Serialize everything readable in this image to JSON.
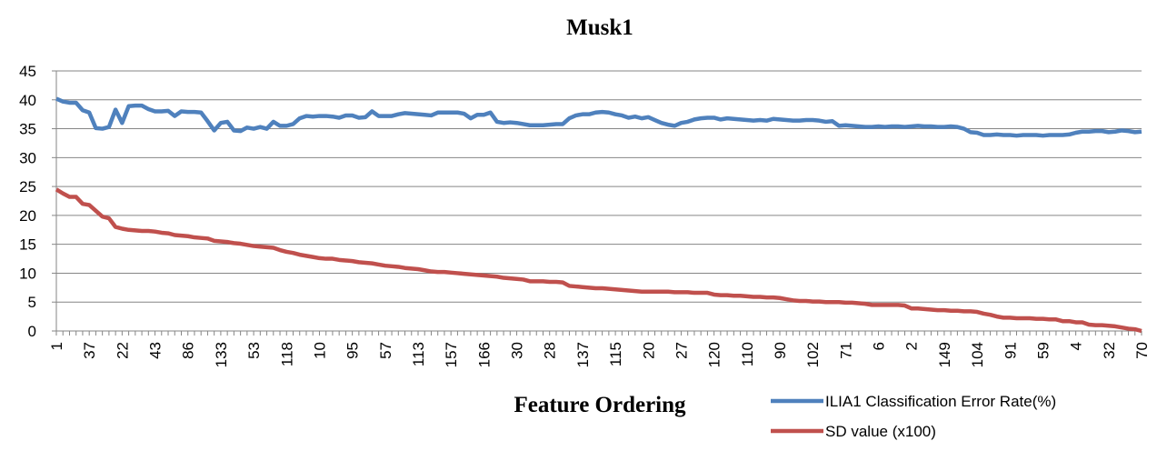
{
  "chart_data": {
    "type": "line",
    "title": "Musk1",
    "x_label": "Feature Ordering",
    "categories": [
      "1",
      null,
      null,
      null,
      null,
      "37",
      null,
      null,
      null,
      null,
      "22",
      null,
      null,
      null,
      null,
      "43",
      null,
      null,
      null,
      null,
      "86",
      null,
      null,
      null,
      null,
      "133",
      null,
      null,
      null,
      null,
      "53",
      null,
      null,
      null,
      null,
      "118",
      null,
      null,
      null,
      null,
      "10",
      null,
      null,
      null,
      null,
      "95",
      null,
      null,
      null,
      null,
      "57",
      null,
      null,
      null,
      null,
      "113",
      null,
      null,
      null,
      null,
      "157",
      null,
      null,
      null,
      null,
      "166",
      null,
      null,
      null,
      null,
      "30",
      null,
      null,
      null,
      null,
      "28",
      null,
      null,
      null,
      null,
      "137",
      null,
      null,
      null,
      null,
      "115",
      null,
      null,
      null,
      null,
      "20",
      null,
      null,
      null,
      null,
      "27",
      null,
      null,
      null,
      null,
      "120",
      null,
      null,
      null,
      null,
      "110",
      null,
      null,
      null,
      null,
      "90",
      null,
      null,
      null,
      null,
      "102",
      null,
      null,
      null,
      null,
      "71",
      null,
      null,
      null,
      null,
      "6",
      null,
      null,
      null,
      null,
      "2",
      null,
      null,
      null,
      null,
      "149",
      null,
      null,
      null,
      null,
      "104",
      null,
      null,
      null,
      null,
      "91",
      null,
      null,
      null,
      null,
      "59",
      null,
      null,
      null,
      null,
      "4",
      null,
      null,
      null,
      null,
      "32",
      null,
      null,
      null,
      null,
      "70"
    ],
    "series": [
      {
        "name": "ILIA1 Classification Error Rate(%)",
        "color": "#4f81bd",
        "values": [
          40.2,
          39.7,
          39.5,
          39.5,
          38.2,
          37.8,
          35.1,
          35.0,
          35.3,
          38.3,
          36.0,
          38.9,
          39.0,
          39.0,
          38.4,
          38.0,
          38.0,
          38.1,
          37.2,
          38.0,
          37.9,
          37.9,
          37.8,
          36.3,
          34.7,
          36.0,
          36.2,
          34.7,
          34.6,
          35.2,
          35.0,
          35.3,
          35.0,
          36.2,
          35.5,
          35.5,
          35.8,
          36.8,
          37.2,
          37.1,
          37.2,
          37.2,
          37.1,
          36.9,
          37.3,
          37.3,
          36.9,
          37.0,
          38.0,
          37.2,
          37.2,
          37.2,
          37.5,
          37.7,
          37.6,
          37.5,
          37.4,
          37.3,
          37.8,
          37.8,
          37.8,
          37.8,
          37.6,
          36.8,
          37.4,
          37.4,
          37.8,
          36.2,
          36.0,
          36.1,
          36.0,
          35.8,
          35.6,
          35.6,
          35.6,
          35.7,
          35.8,
          35.8,
          36.8,
          37.3,
          37.5,
          37.5,
          37.8,
          37.9,
          37.8,
          37.5,
          37.3,
          36.9,
          37.1,
          36.8,
          37.0,
          36.5,
          36.0,
          35.7,
          35.5,
          36.0,
          36.2,
          36.6,
          36.8,
          36.9,
          36.9,
          36.6,
          36.8,
          36.7,
          36.6,
          36.5,
          36.4,
          36.5,
          36.4,
          36.7,
          36.6,
          36.5,
          36.4,
          36.4,
          36.5,
          36.5,
          36.4,
          36.2,
          36.3,
          35.5,
          35.6,
          35.5,
          35.4,
          35.3,
          35.3,
          35.4,
          35.3,
          35.4,
          35.4,
          35.3,
          35.4,
          35.5,
          35.4,
          35.4,
          35.3,
          35.3,
          35.4,
          35.3,
          35.0,
          34.4,
          34.3,
          33.9,
          33.9,
          34.0,
          33.9,
          33.9,
          33.8,
          33.9,
          33.9,
          33.9,
          33.8,
          33.9,
          33.9,
          33.9,
          34.0,
          34.3,
          34.5,
          34.5,
          34.6,
          34.6,
          34.4,
          34.5,
          34.7,
          34.6,
          34.4,
          34.5
        ]
      },
      {
        "name": "SD value (x100)",
        "color": "#c0504d",
        "values": [
          24.5,
          23.8,
          23.2,
          23.2,
          22.0,
          21.8,
          20.8,
          19.8,
          19.5,
          18.0,
          17.7,
          17.5,
          17.4,
          17.3,
          17.3,
          17.2,
          17.0,
          16.9,
          16.6,
          16.5,
          16.4,
          16.2,
          16.1,
          16.0,
          15.6,
          15.5,
          15.4,
          15.2,
          15.1,
          14.9,
          14.7,
          14.6,
          14.5,
          14.4,
          14.0,
          13.7,
          13.5,
          13.2,
          13.0,
          12.8,
          12.6,
          12.5,
          12.5,
          12.3,
          12.2,
          12.1,
          11.9,
          11.8,
          11.7,
          11.5,
          11.3,
          11.2,
          11.1,
          10.9,
          10.8,
          10.7,
          10.5,
          10.3,
          10.2,
          10.2,
          10.1,
          10.0,
          9.9,
          9.8,
          9.7,
          9.6,
          9.5,
          9.4,
          9.2,
          9.1,
          9.0,
          8.9,
          8.6,
          8.6,
          8.6,
          8.5,
          8.5,
          8.4,
          7.8,
          7.7,
          7.6,
          7.5,
          7.4,
          7.4,
          7.3,
          7.2,
          7.1,
          7.0,
          6.9,
          6.8,
          6.8,
          6.8,
          6.8,
          6.8,
          6.7,
          6.7,
          6.7,
          6.6,
          6.6,
          6.6,
          6.3,
          6.2,
          6.2,
          6.1,
          6.1,
          6.0,
          5.9,
          5.9,
          5.8,
          5.8,
          5.7,
          5.5,
          5.3,
          5.2,
          5.2,
          5.1,
          5.1,
          5.0,
          5.0,
          5.0,
          4.9,
          4.9,
          4.8,
          4.7,
          4.5,
          4.5,
          4.5,
          4.5,
          4.5,
          4.4,
          3.9,
          3.9,
          3.8,
          3.7,
          3.6,
          3.6,
          3.5,
          3.5,
          3.4,
          3.4,
          3.3,
          3.0,
          2.8,
          2.5,
          2.3,
          2.3,
          2.2,
          2.2,
          2.2,
          2.1,
          2.1,
          2.0,
          2.0,
          1.7,
          1.7,
          1.5,
          1.5,
          1.1,
          1.0,
          1.0,
          0.9,
          0.8,
          0.6,
          0.4,
          0.3,
          0
        ]
      }
    ],
    "ylim": [
      0,
      45
    ],
    "yticks": [
      0,
      5,
      10,
      15,
      20,
      25,
      30,
      35,
      40,
      45
    ],
    "grid": true,
    "legend": "bottom-right"
  }
}
